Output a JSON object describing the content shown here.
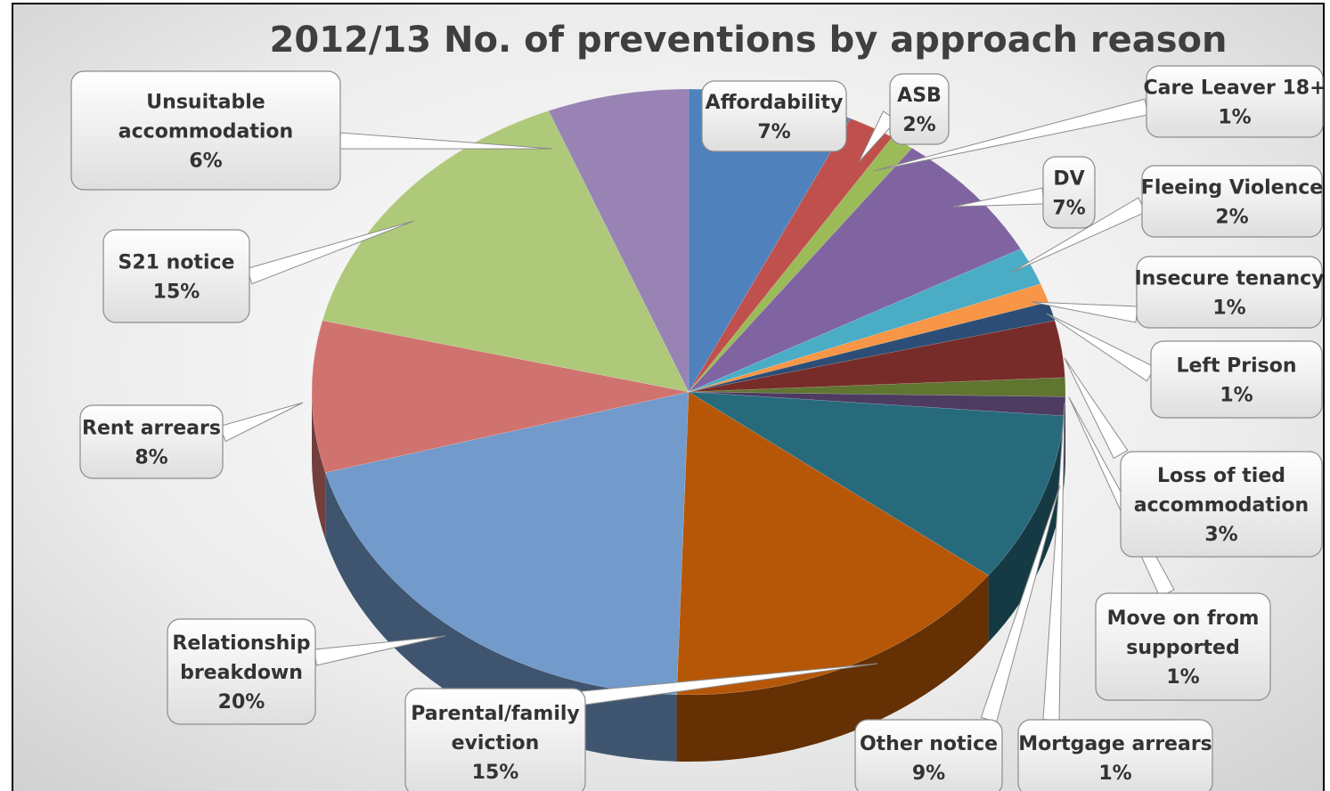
{
  "chart_data": {
    "type": "pie",
    "title": "2012/13 No. of preventions by approach reason",
    "unit": "%",
    "slices": [
      {
        "label": "Affordability",
        "value": 7,
        "value_label": "7%",
        "color": "#4f81bd"
      },
      {
        "label": "ASB",
        "value": 2,
        "value_label": "2%",
        "color": "#c0504d"
      },
      {
        "label": "Care Leaver 18+",
        "value": 1,
        "value_label": "1%",
        "color": "#9bbb59"
      },
      {
        "label": "DV",
        "value": 7,
        "value_label": "7%",
        "color": "#8064a2"
      },
      {
        "label": "Fleeing Violence",
        "value": 2,
        "value_label": "2%",
        "color": "#4bacc6"
      },
      {
        "label": "Insecure tenancy",
        "value": 1,
        "value_label": "1%",
        "color": "#f79646"
      },
      {
        "label": "Left Prison",
        "value": 1,
        "value_label": "1%",
        "color": "#2c4d75"
      },
      {
        "label": "Loss of tied accommodation",
        "value": 3,
        "value_label": "3%",
        "color": "#772c2a"
      },
      {
        "label": "Mortgage arrears",
        "value": 1,
        "value_label": "1%",
        "color": "#5f7530"
      },
      {
        "label": "Move on from supported",
        "value": 1,
        "value_label": "1%",
        "color": "#4d3b62"
      },
      {
        "label": "Other notice",
        "value": 9,
        "value_label": "9%",
        "color": "#276a7c"
      },
      {
        "label": "Parental/family eviction",
        "value": 15,
        "value_label": "15%",
        "color": "#b65708"
      },
      {
        "label": "Relationship breakdown",
        "value": 20,
        "value_label": "20%",
        "color": "#729aca"
      },
      {
        "label": "Rent arrears",
        "value": 8,
        "value_label": "8%",
        "color": "#d0736f"
      },
      {
        "label": "S21 notice",
        "value": 15,
        "value_label": "15%",
        "color": "#afc97a"
      },
      {
        "label": "Unsuitable accommodation",
        "value": 6,
        "value_label": "6%",
        "color": "#9983b5"
      }
    ]
  }
}
